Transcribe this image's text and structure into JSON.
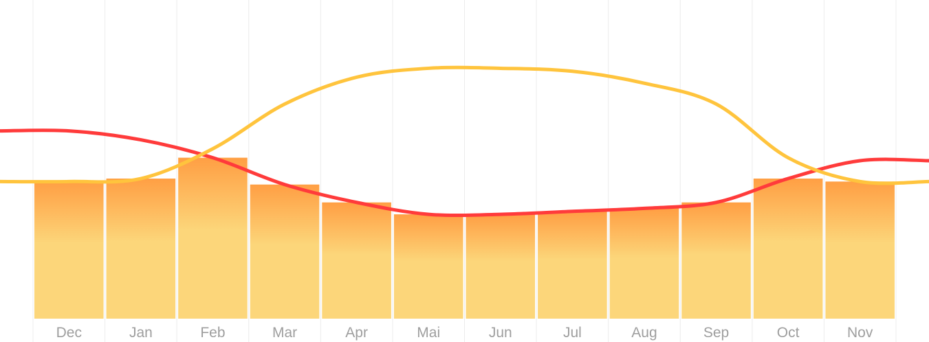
{
  "chart_data": {
    "type": "area",
    "categories": [
      "Dec",
      "Jan",
      "Feb",
      "Mar",
      "Apr",
      "Mai",
      "Jun",
      "Jul",
      "Aug",
      "Sep",
      "Oct",
      "Nov"
    ],
    "series": [
      {
        "values": [
          0.63,
          0.6,
          0.54,
          0.45,
          0.39,
          0.35,
          0.35,
          0.36,
          0.37,
          0.39,
          0.47,
          0.53
        ]
      },
      {
        "values": [
          0.46,
          0.47,
          0.57,
          0.72,
          0.81,
          0.84,
          0.84,
          0.83,
          0.79,
          0.72,
          0.54,
          0.46
        ]
      }
    ],
    "ylim": [
      0,
      1
    ],
    "grid": true,
    "legend": "none",
    "colors": {
      "red_line": "#ff3b3b",
      "yellow_line": "#ffc43d",
      "bar_light": "#fcd67a",
      "bar_orange": "#fca23e",
      "gridline": "#ececec",
      "label": "#9e9e9e"
    }
  }
}
